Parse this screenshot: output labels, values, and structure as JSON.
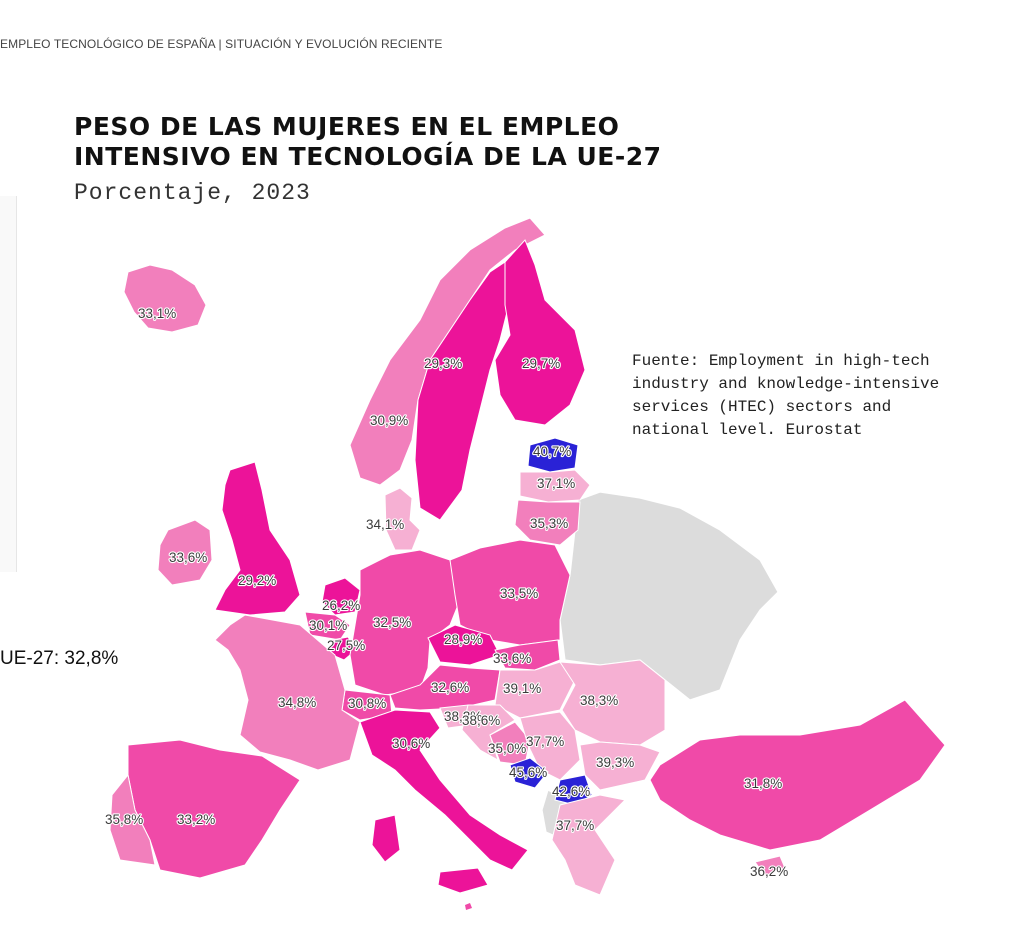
{
  "header": {
    "text": "EMPLEO TECNOLÓGICO DE ESPAÑA |  SITUACIÓN Y EVOLUCIÓN RECIENTE"
  },
  "title": {
    "line1": "PESO DE LAS MUJERES EN EL EMPLEO",
    "line2": "INTENSIVO EN TECNOLOGÍA DE LA UE-27",
    "subtitle": "Porcentaje, 2023"
  },
  "source": {
    "line1": "Fuente: Employment in high-tech",
    "line2": "industry and knowledge-intensive",
    "line3": "services (HTEC) sectors and",
    "line4": "national level. Eurostat"
  },
  "average": {
    "text": "UE-27: 32,8%"
  },
  "colors": {
    "dark_pink": "#ec1399",
    "mid_pink": "#f04aa8",
    "light_pink": "#f27fbc",
    "pale_pink": "#f6b0d3",
    "blue": "#2a22d6",
    "no_data": "#dcdcdc"
  },
  "map_data": {
    "countries": [
      {
        "id": "iceland",
        "value": "33,1%",
        "shade": "light_pink"
      },
      {
        "id": "norway",
        "value": "30,9%",
        "shade": "light_pink"
      },
      {
        "id": "sweden",
        "value": "29,3%",
        "shade": "dark_pink"
      },
      {
        "id": "finland",
        "value": "29,7%",
        "shade": "dark_pink"
      },
      {
        "id": "estonia",
        "value": "40,7%",
        "shade": "blue"
      },
      {
        "id": "latvia",
        "value": "37,1%",
        "shade": "pale_pink"
      },
      {
        "id": "lithuania",
        "value": "35,3%",
        "shade": "light_pink"
      },
      {
        "id": "denmark",
        "value": "34,1%",
        "shade": "pale_pink"
      },
      {
        "id": "ireland",
        "value": "33,6%",
        "shade": "light_pink"
      },
      {
        "id": "united-kingdom",
        "value": "29,2%",
        "shade": "dark_pink"
      },
      {
        "id": "netherlands",
        "value": "26,2%",
        "shade": "dark_pink"
      },
      {
        "id": "belgium",
        "value": "30,1%",
        "shade": "mid_pink"
      },
      {
        "id": "luxembourg",
        "value": "27,5%",
        "shade": "dark_pink"
      },
      {
        "id": "germany",
        "value": "32,5%",
        "shade": "mid_pink"
      },
      {
        "id": "poland",
        "value": "33,5%",
        "shade": "mid_pink"
      },
      {
        "id": "czechia",
        "value": "28,9%",
        "shade": "dark_pink"
      },
      {
        "id": "slovakia",
        "value": "33,6%",
        "shade": "mid_pink"
      },
      {
        "id": "austria",
        "value": "32,6%",
        "shade": "mid_pink"
      },
      {
        "id": "hungary",
        "value": "39,1%",
        "shade": "pale_pink"
      },
      {
        "id": "romania",
        "value": "38,3%",
        "shade": "pale_pink"
      },
      {
        "id": "slovenia",
        "value": "38,2%",
        "shade": "pale_pink"
      },
      {
        "id": "croatia",
        "value": "38,6%",
        "shade": "pale_pink"
      },
      {
        "id": "serbia",
        "value": "37,7%",
        "shade": "pale_pink"
      },
      {
        "id": "bosnia",
        "value": "35,0%",
        "shade": "light_pink"
      },
      {
        "id": "montenegro",
        "value": "45,6%",
        "shade": "blue"
      },
      {
        "id": "north-macedonia",
        "value": "42,6%",
        "shade": "blue"
      },
      {
        "id": "bulgaria",
        "value": "39,3%",
        "shade": "pale_pink"
      },
      {
        "id": "greece",
        "value": "37,7%",
        "shade": "pale_pink"
      },
      {
        "id": "switzerland",
        "value": "30,8%",
        "shade": "mid_pink"
      },
      {
        "id": "france",
        "value": "34,8%",
        "shade": "light_pink"
      },
      {
        "id": "italy",
        "value": "30,6%",
        "shade": "dark_pink"
      },
      {
        "id": "spain",
        "value": "33,2%",
        "shade": "mid_pink"
      },
      {
        "id": "portugal",
        "value": "35,8%",
        "shade": "light_pink"
      },
      {
        "id": "turkey",
        "value": "31,8%",
        "shade": "mid_pink"
      },
      {
        "id": "cyprus",
        "value": "36,2%",
        "shade": "light_pink"
      }
    ]
  }
}
